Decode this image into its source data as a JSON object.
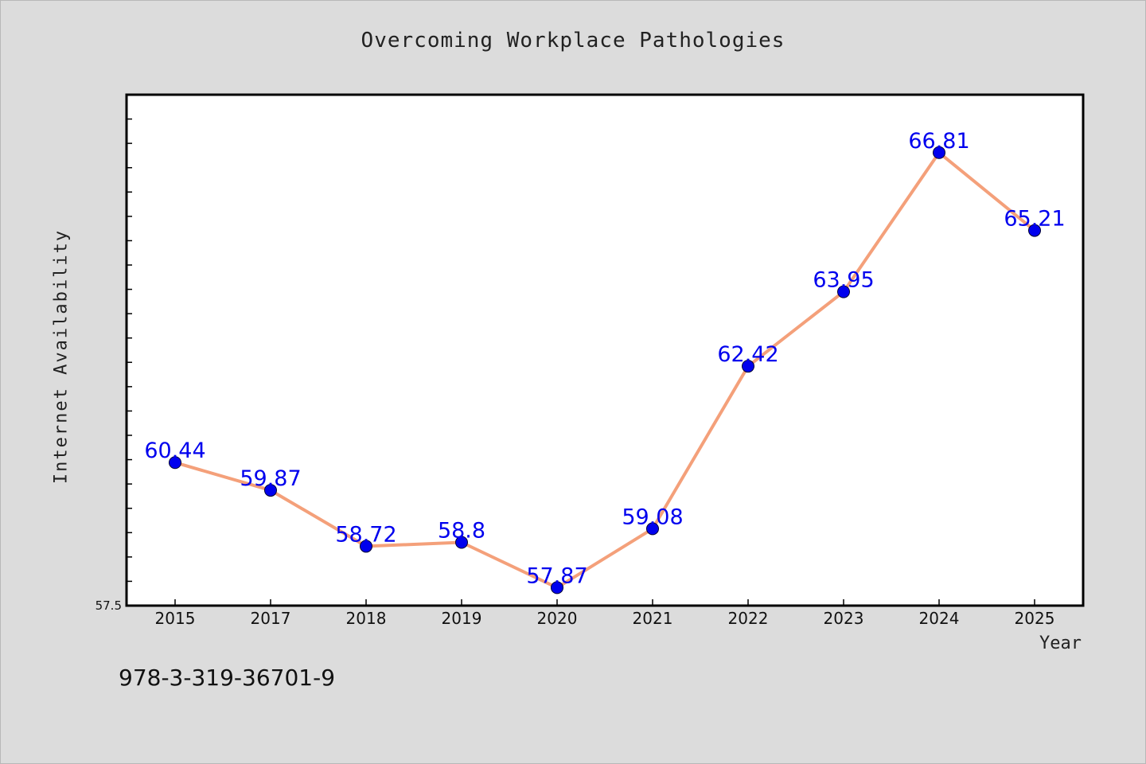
{
  "chart_data": {
    "type": "line",
    "title": "Overcoming Workplace Pathologies",
    "xlabel": "Year",
    "ylabel": "Internet Availability",
    "categories": [
      "2015",
      "2017",
      "2018",
      "2019",
      "2020",
      "2021",
      "2022",
      "2023",
      "2024",
      "2025"
    ],
    "values": [
      60.44,
      59.87,
      58.72,
      58.8,
      57.87,
      59.08,
      62.42,
      63.95,
      66.81,
      65.21
    ],
    "data_labels": [
      "60.44",
      "59.87",
      "58.72",
      "58.8",
      "57.87",
      "59.08",
      "62.42",
      "63.95",
      "66.81",
      "65.21"
    ],
    "y_tick_label": "57.5",
    "ylim": [
      57.5,
      68.0
    ],
    "grid": false,
    "line_color": "#f4a07a",
    "marker_color": "#0000ee",
    "label_color": "#0000ee"
  },
  "footer": {
    "isbn": "978-3-319-36701-9"
  }
}
